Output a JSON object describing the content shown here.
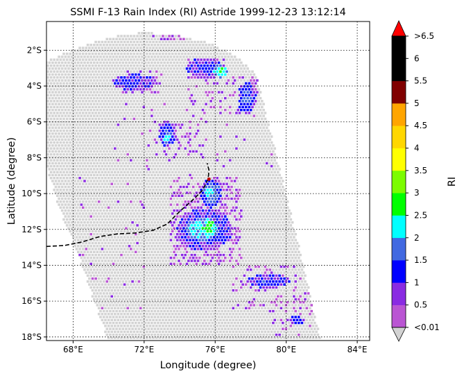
{
  "chart_data": {
    "type": "scatter",
    "title": "SSMI F-13 Rain Index (RI) Astride 1999-12-23 13:12:14",
    "xlabel": "Longitude (degree)",
    "ylabel": "Latitude (degree)",
    "xlim": [
      66.5,
      84.7
    ],
    "ylim": [
      -18.2,
      -0.4
    ],
    "x_ticks": [
      {
        "value": 68,
        "label": "68°E"
      },
      {
        "value": 72,
        "label": "72°E"
      },
      {
        "value": 76,
        "label": "76°E"
      },
      {
        "value": 80,
        "label": "80°E"
      },
      {
        "value": 84,
        "label": "84°E"
      }
    ],
    "y_ticks": [
      {
        "value": -2,
        "label": "2°S"
      },
      {
        "value": -4,
        "label": "4°S"
      },
      {
        "value": -6,
        "label": "6°S"
      },
      {
        "value": -8,
        "label": "8°S"
      },
      {
        "value": -10,
        "label": "10°S"
      },
      {
        "value": -12,
        "label": "12°S"
      },
      {
        "value": -14,
        "label": "14°S"
      },
      {
        "value": -16,
        "label": "16°S"
      },
      {
        "value": -18,
        "label": "18°S"
      }
    ],
    "grid": true,
    "swath": {
      "color": "#d3d3d3",
      "polygon": [
        [
          66.5,
          -2.6
        ],
        [
          68.0,
          -2.0
        ],
        [
          70.0,
          -1.3
        ],
        [
          72.0,
          -1.0
        ],
        [
          74.0,
          -1.2
        ],
        [
          76.0,
          -1.7
        ],
        [
          77.5,
          -2.6
        ],
        [
          78.3,
          -3.3
        ],
        [
          79.0,
          -6.0
        ],
        [
          80.0,
          -10.0
        ],
        [
          81.0,
          -14.0
        ],
        [
          81.7,
          -17.2
        ],
        [
          82.0,
          -18.2
        ],
        [
          70.0,
          -18.2
        ],
        [
          69.2,
          -16.0
        ],
        [
          68.3,
          -13.5
        ],
        [
          67.3,
          -11.0
        ],
        [
          66.5,
          -8.5
        ]
      ]
    },
    "rain_patches": [
      {
        "x": 71.5,
        "y": -3.8,
        "rx": 1.3,
        "ry": 0.45,
        "ri": 1.2
      },
      {
        "x": 73.3,
        "y": -6.7,
        "rx": 0.5,
        "ry": 0.7,
        "ri": 1.5
      },
      {
        "x": 73.3,
        "y": -6.9,
        "rx": 0.2,
        "ry": 0.3,
        "ri": 2.5
      },
      {
        "x": 75.4,
        "y": -3.0,
        "rx": 1.0,
        "ry": 0.6,
        "ri": 1.2
      },
      {
        "x": 76.3,
        "y": -3.2,
        "rx": 0.5,
        "ry": 0.35,
        "ri": 2.5
      },
      {
        "x": 76.35,
        "y": -3.15,
        "rx": 0.2,
        "ry": 0.15,
        "ri": 3.0
      },
      {
        "x": 77.8,
        "y": -4.7,
        "rx": 0.5,
        "ry": 0.9,
        "ri": 1.5
      },
      {
        "x": 75.8,
        "y": -10.0,
        "rx": 0.6,
        "ry": 0.8,
        "ri": 1.7
      },
      {
        "x": 75.7,
        "y": -10.0,
        "rx": 0.3,
        "ry": 0.5,
        "ri": 2.3
      },
      {
        "x": 75.4,
        "y": -12.0,
        "rx": 1.6,
        "ry": 1.2,
        "ri": 1.3
      },
      {
        "x": 75.3,
        "y": -12.0,
        "rx": 0.9,
        "ry": 0.7,
        "ri": 2.3
      },
      {
        "x": 75.7,
        "y": -11.9,
        "rx": 0.35,
        "ry": 0.45,
        "ri": 3.0
      },
      {
        "x": 79.0,
        "y": -14.9,
        "rx": 1.2,
        "ry": 0.4,
        "ri": 1.3
      },
      {
        "x": 80.6,
        "y": -17.1,
        "rx": 0.4,
        "ry": 0.25,
        "ri": 1.3
      }
    ],
    "scatter_regions": [
      {
        "x0": 70.5,
        "y0": -4.5,
        "x1": 73.0,
        "y1": -3.2,
        "p": 0.35
      },
      {
        "x0": 74.5,
        "y0": -5.2,
        "x1": 76.5,
        "y1": -2.4,
        "p": 0.22
      },
      {
        "x0": 76.0,
        "y0": -5.5,
        "x1": 78.5,
        "y1": -3.5,
        "p": 0.25
      },
      {
        "x0": 72.5,
        "y0": -8.0,
        "x1": 75.5,
        "y1": -6.0,
        "p": 0.25
      },
      {
        "x0": 73.5,
        "y0": -14.0,
        "x1": 77.5,
        "y1": -9.0,
        "p": 0.45
      },
      {
        "x0": 77.0,
        "y0": -16.5,
        "x1": 81.5,
        "y1": -14.0,
        "p": 0.22
      },
      {
        "x0": 79.0,
        "y0": -18.0,
        "x1": 81.5,
        "y1": -16.0,
        "p": 0.2
      },
      {
        "x0": 72.5,
        "y0": -1.5,
        "x1": 74.5,
        "y1": -1.0,
        "p": 0.45
      },
      {
        "x0": 68.0,
        "y0": -16.5,
        "x1": 72.0,
        "y1": -9.0,
        "p": 0.04
      },
      {
        "x0": 70.0,
        "y0": -9.0,
        "x1": 80.0,
        "y1": -5.0,
        "p": 0.04
      }
    ],
    "track": {
      "color": "#000000",
      "style": "dashed",
      "points": [
        [
          66.5,
          -12.95
        ],
        [
          67.5,
          -12.9
        ],
        [
          68.5,
          -12.7
        ],
        [
          69.5,
          -12.4
        ],
        [
          70.5,
          -12.25
        ],
        [
          71.5,
          -12.2
        ],
        [
          72.5,
          -12.05
        ],
        [
          73.3,
          -11.7
        ],
        [
          74.0,
          -11.0
        ],
        [
          74.8,
          -10.3
        ],
        [
          75.3,
          -9.8
        ],
        [
          75.6,
          -9.2
        ],
        [
          75.65,
          -8.7
        ],
        [
          75.55,
          -8.3
        ]
      ],
      "marker": {
        "x": 75.65,
        "y": -9.2,
        "color": "#c00000"
      }
    },
    "colorbar": {
      "label": "RI",
      "tick_labels": [
        "<0.01",
        "0.5",
        "1",
        "1.5",
        "2",
        "2.5",
        "3",
        "3.5",
        "4",
        "4.5",
        "5",
        "5.5",
        "6",
        ">6.5"
      ],
      "bounds": [
        0.01,
        0.5,
        1,
        1.5,
        2,
        2.5,
        3,
        3.5,
        4,
        4.5,
        5,
        5.5,
        6,
        6.5
      ],
      "colors": [
        "#ba55d3",
        "#8a2be2",
        "#0000ff",
        "#4169e1",
        "#00ffff",
        "#00ff00",
        "#7cfc00",
        "#ffff00",
        "#ffd700",
        "#ffa500",
        "#800000",
        "#000000",
        "#000000"
      ],
      "under_color": "#d3d3d3",
      "over_color": "#ff0000"
    }
  }
}
